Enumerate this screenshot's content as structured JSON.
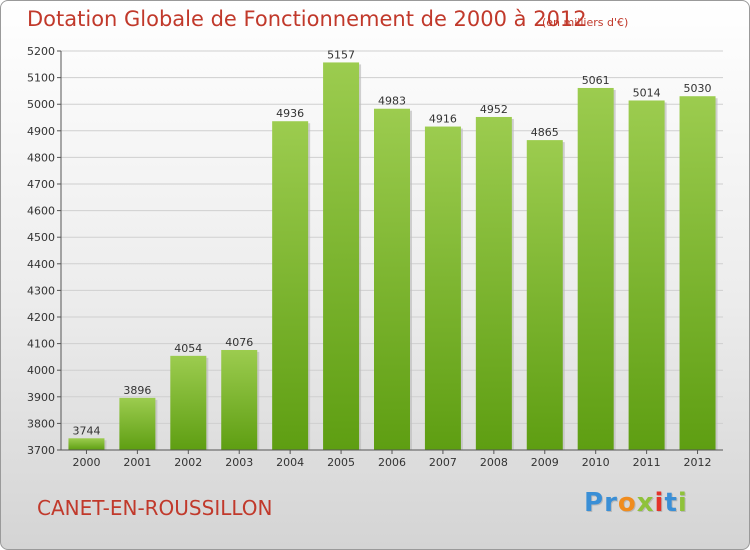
{
  "chart_data": {
    "type": "bar",
    "title": "Dotation Globale de Fonctionnement de 2000 à 2012",
    "subtitle": "(en milliers d'€)",
    "categories": [
      "2000",
      "2001",
      "2002",
      "2003",
      "2004",
      "2005",
      "2006",
      "2007",
      "2008",
      "2009",
      "2010",
      "2011",
      "2012"
    ],
    "values": [
      3744,
      3896,
      4054,
      4076,
      4936,
      5157,
      4983,
      4916,
      4952,
      4865,
      5061,
      5014,
      5030
    ],
    "ylim": [
      3700,
      5200
    ],
    "yticks": [
      3700,
      3800,
      3900,
      4000,
      4100,
      4200,
      4300,
      4400,
      4500,
      4600,
      4700,
      4800,
      4900,
      5000,
      5100,
      5200
    ],
    "xlabel": "",
    "ylabel": "",
    "grid": true,
    "bar_color_top": "#9ccc4f",
    "bar_color_bottom": "#5e9e12",
    "title_color": "#c1392b"
  },
  "footer": {
    "place": "CANET-EN-ROUSSILLON",
    "logo_letters": [
      {
        "char": "P",
        "color": "#3a8fd6"
      },
      {
        "char": "r",
        "color": "#3a8fd6"
      },
      {
        "char": "o",
        "color": "#f08c1e"
      },
      {
        "char": "x",
        "color": "#8fc23a"
      },
      {
        "char": "i",
        "color": "#e4332b"
      },
      {
        "char": "t",
        "color": "#3a8fd6"
      },
      {
        "char": "i",
        "color": "#8fc23a"
      }
    ]
  }
}
